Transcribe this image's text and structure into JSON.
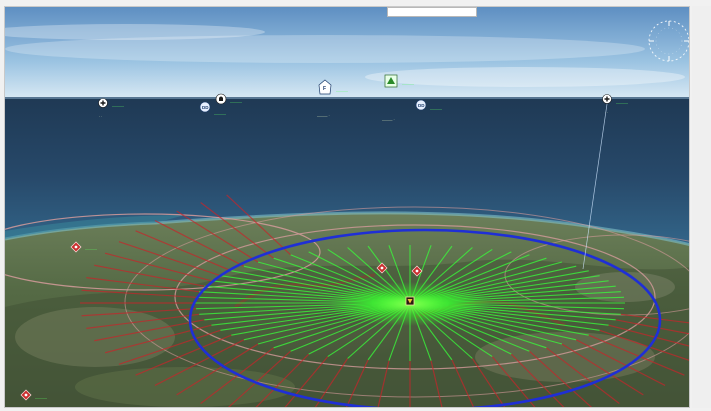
{
  "colors": {
    "sky_top": "#6f9fce",
    "sky_bottom": "#d6e7f3",
    "sea_top": "#25405a",
    "sea_bottom": "#2d5878",
    "range_ring": "#1f2fd6",
    "track_green": "#38ff3a",
    "track_red": "#c8242a",
    "hud_label": "#5cff62",
    "outer_ring": "#d59b9b"
  },
  "icons": [
    "aircraft-contact-icon",
    "helicopter-contact-icon",
    "ship-contact-icon",
    "fighter-contact-icon",
    "base-contact-icon",
    "threat-contact-icon",
    "own-unit-icon",
    "compass-icon"
  ]
}
